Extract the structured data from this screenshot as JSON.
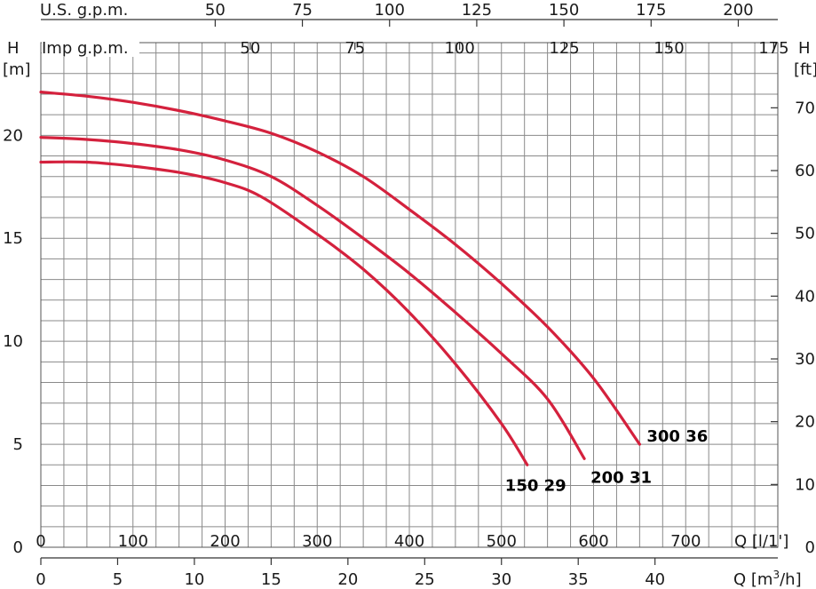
{
  "chart_data": {
    "type": "line",
    "axes": {
      "left": {
        "label_top": "H",
        "label_unit": "[m]",
        "ticks": [
          0,
          5,
          10,
          15,
          20
        ],
        "range": [
          0,
          24.5
        ]
      },
      "right": {
        "label_top": "H",
        "label_unit": "[ft]",
        "ticks": [
          0,
          10,
          20,
          30,
          40,
          50,
          60,
          70
        ]
      },
      "bottom1": {
        "label": "Q [l/1']",
        "ticks": [
          0,
          100,
          200,
          300,
          400,
          500,
          600,
          700
        ],
        "range": [
          0,
          800
        ]
      },
      "bottom2": {
        "label": "Q [m³/h]",
        "label_main": "Q [m",
        "label_sup": "3",
        "label_end": "/h]",
        "ticks": [
          0,
          5,
          10,
          15,
          20,
          25,
          30,
          35,
          40
        ]
      },
      "top1": {
        "label": "U.S. g.p.m.",
        "ticks": [
          50,
          75,
          100,
          125,
          150,
          175,
          200
        ]
      },
      "top2": {
        "label": "Imp g.p.m.",
        "ticks": [
          50,
          75,
          100,
          125,
          150,
          175
        ]
      }
    },
    "grid": true,
    "line_color": "#d4213d",
    "series": [
      {
        "name": "150 29",
        "points": [
          [
            0,
            18.7
          ],
          [
            50,
            18.7
          ],
          [
            100,
            18.5
          ],
          [
            150,
            18.2
          ],
          [
            200,
            17.7
          ],
          [
            240,
            17.0
          ],
          [
            300,
            15.2
          ],
          [
            350,
            13.5
          ],
          [
            400,
            11.4
          ],
          [
            450,
            8.9
          ],
          [
            500,
            6.0
          ],
          [
            528,
            4.0
          ]
        ]
      },
      {
        "name": "200 31",
        "points": [
          [
            0,
            19.9
          ],
          [
            50,
            19.8
          ],
          [
            100,
            19.6
          ],
          [
            150,
            19.3
          ],
          [
            200,
            18.8
          ],
          [
            250,
            18.0
          ],
          [
            300,
            16.6
          ],
          [
            350,
            15.0
          ],
          [
            400,
            13.3
          ],
          [
            450,
            11.4
          ],
          [
            500,
            9.4
          ],
          [
            550,
            7.2
          ],
          [
            590,
            4.3
          ]
        ]
      },
      {
        "name": "300 36",
        "points": [
          [
            0,
            22.1
          ],
          [
            50,
            21.9
          ],
          [
            100,
            21.6
          ],
          [
            150,
            21.2
          ],
          [
            200,
            20.7
          ],
          [
            250,
            20.1
          ],
          [
            300,
            19.2
          ],
          [
            350,
            18.0
          ],
          [
            400,
            16.4
          ],
          [
            450,
            14.7
          ],
          [
            500,
            12.8
          ],
          [
            550,
            10.7
          ],
          [
            600,
            8.2
          ],
          [
            650,
            5.0
          ]
        ]
      }
    ]
  }
}
